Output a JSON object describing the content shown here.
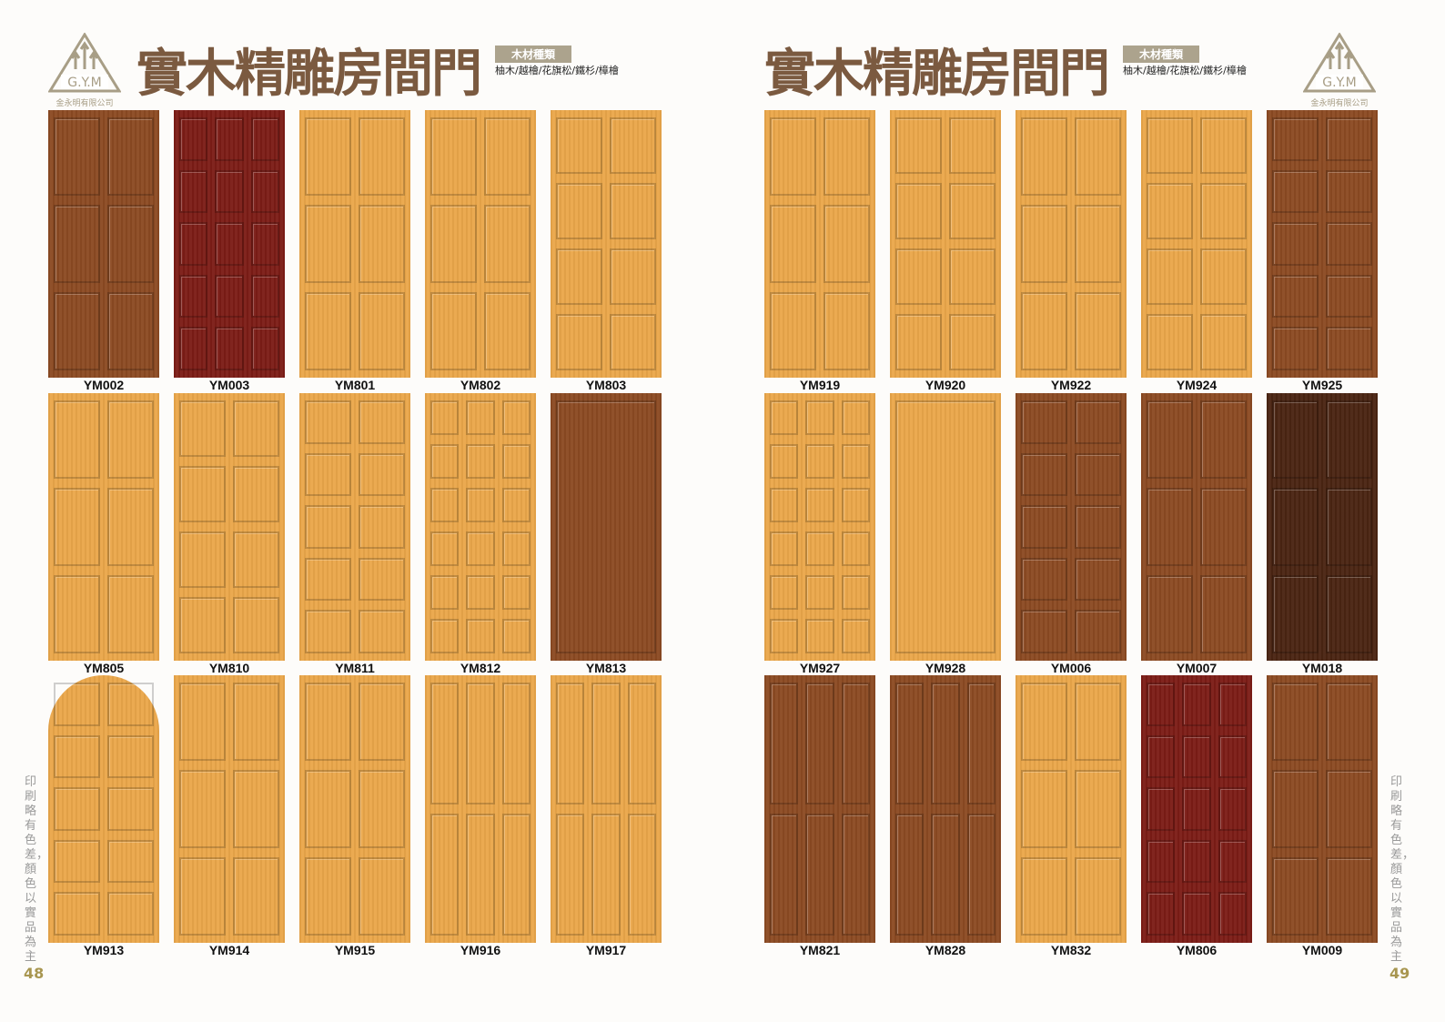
{
  "brand": {
    "logo_text": "G.Y.M",
    "company": "金永明有限公司"
  },
  "title": "實木精雕房間門",
  "wood_badge": "木材種類",
  "wood_types": "柚木/越檜/花旗松/鐵杉/樟檜",
  "side_note": "印刷略有色差，顏色以實品為主",
  "colors": {
    "light": "#eaa74a",
    "brown": "#8b4a22",
    "red": "#7c1c16",
    "dark": "#4a2412",
    "title": "#7b5a40"
  },
  "pages": [
    {
      "number": "48",
      "doors": [
        {
          "code": "YM002",
          "tone": "brown"
        },
        {
          "code": "YM003",
          "tone": "red"
        },
        {
          "code": "YM801",
          "tone": "light"
        },
        {
          "code": "YM802",
          "tone": "light"
        },
        {
          "code": "YM803",
          "tone": "light"
        },
        {
          "code": "YM805",
          "tone": "light"
        },
        {
          "code": "YM810",
          "tone": "light"
        },
        {
          "code": "YM811",
          "tone": "light"
        },
        {
          "code": "YM812",
          "tone": "light"
        },
        {
          "code": "YM813",
          "tone": "brown"
        },
        {
          "code": "YM913",
          "tone": "light",
          "arched": true
        },
        {
          "code": "YM914",
          "tone": "light"
        },
        {
          "code": "YM915",
          "tone": "light"
        },
        {
          "code": "YM916",
          "tone": "light"
        },
        {
          "code": "YM917",
          "tone": "light"
        }
      ]
    },
    {
      "number": "49",
      "doors": [
        {
          "code": "YM919",
          "tone": "light"
        },
        {
          "code": "YM920",
          "tone": "light"
        },
        {
          "code": "YM922",
          "tone": "light"
        },
        {
          "code": "YM924",
          "tone": "light"
        },
        {
          "code": "YM925",
          "tone": "brown"
        },
        {
          "code": "YM927",
          "tone": "light"
        },
        {
          "code": "YM928",
          "tone": "light"
        },
        {
          "code": "YM006",
          "tone": "brown"
        },
        {
          "code": "YM007",
          "tone": "brown"
        },
        {
          "code": "YM018",
          "tone": "dark"
        },
        {
          "code": "YM821",
          "tone": "brown"
        },
        {
          "code": "YM828",
          "tone": "brown"
        },
        {
          "code": "YM832",
          "tone": "light"
        },
        {
          "code": "YM806",
          "tone": "red"
        },
        {
          "code": "YM009",
          "tone": "brown"
        }
      ]
    }
  ]
}
